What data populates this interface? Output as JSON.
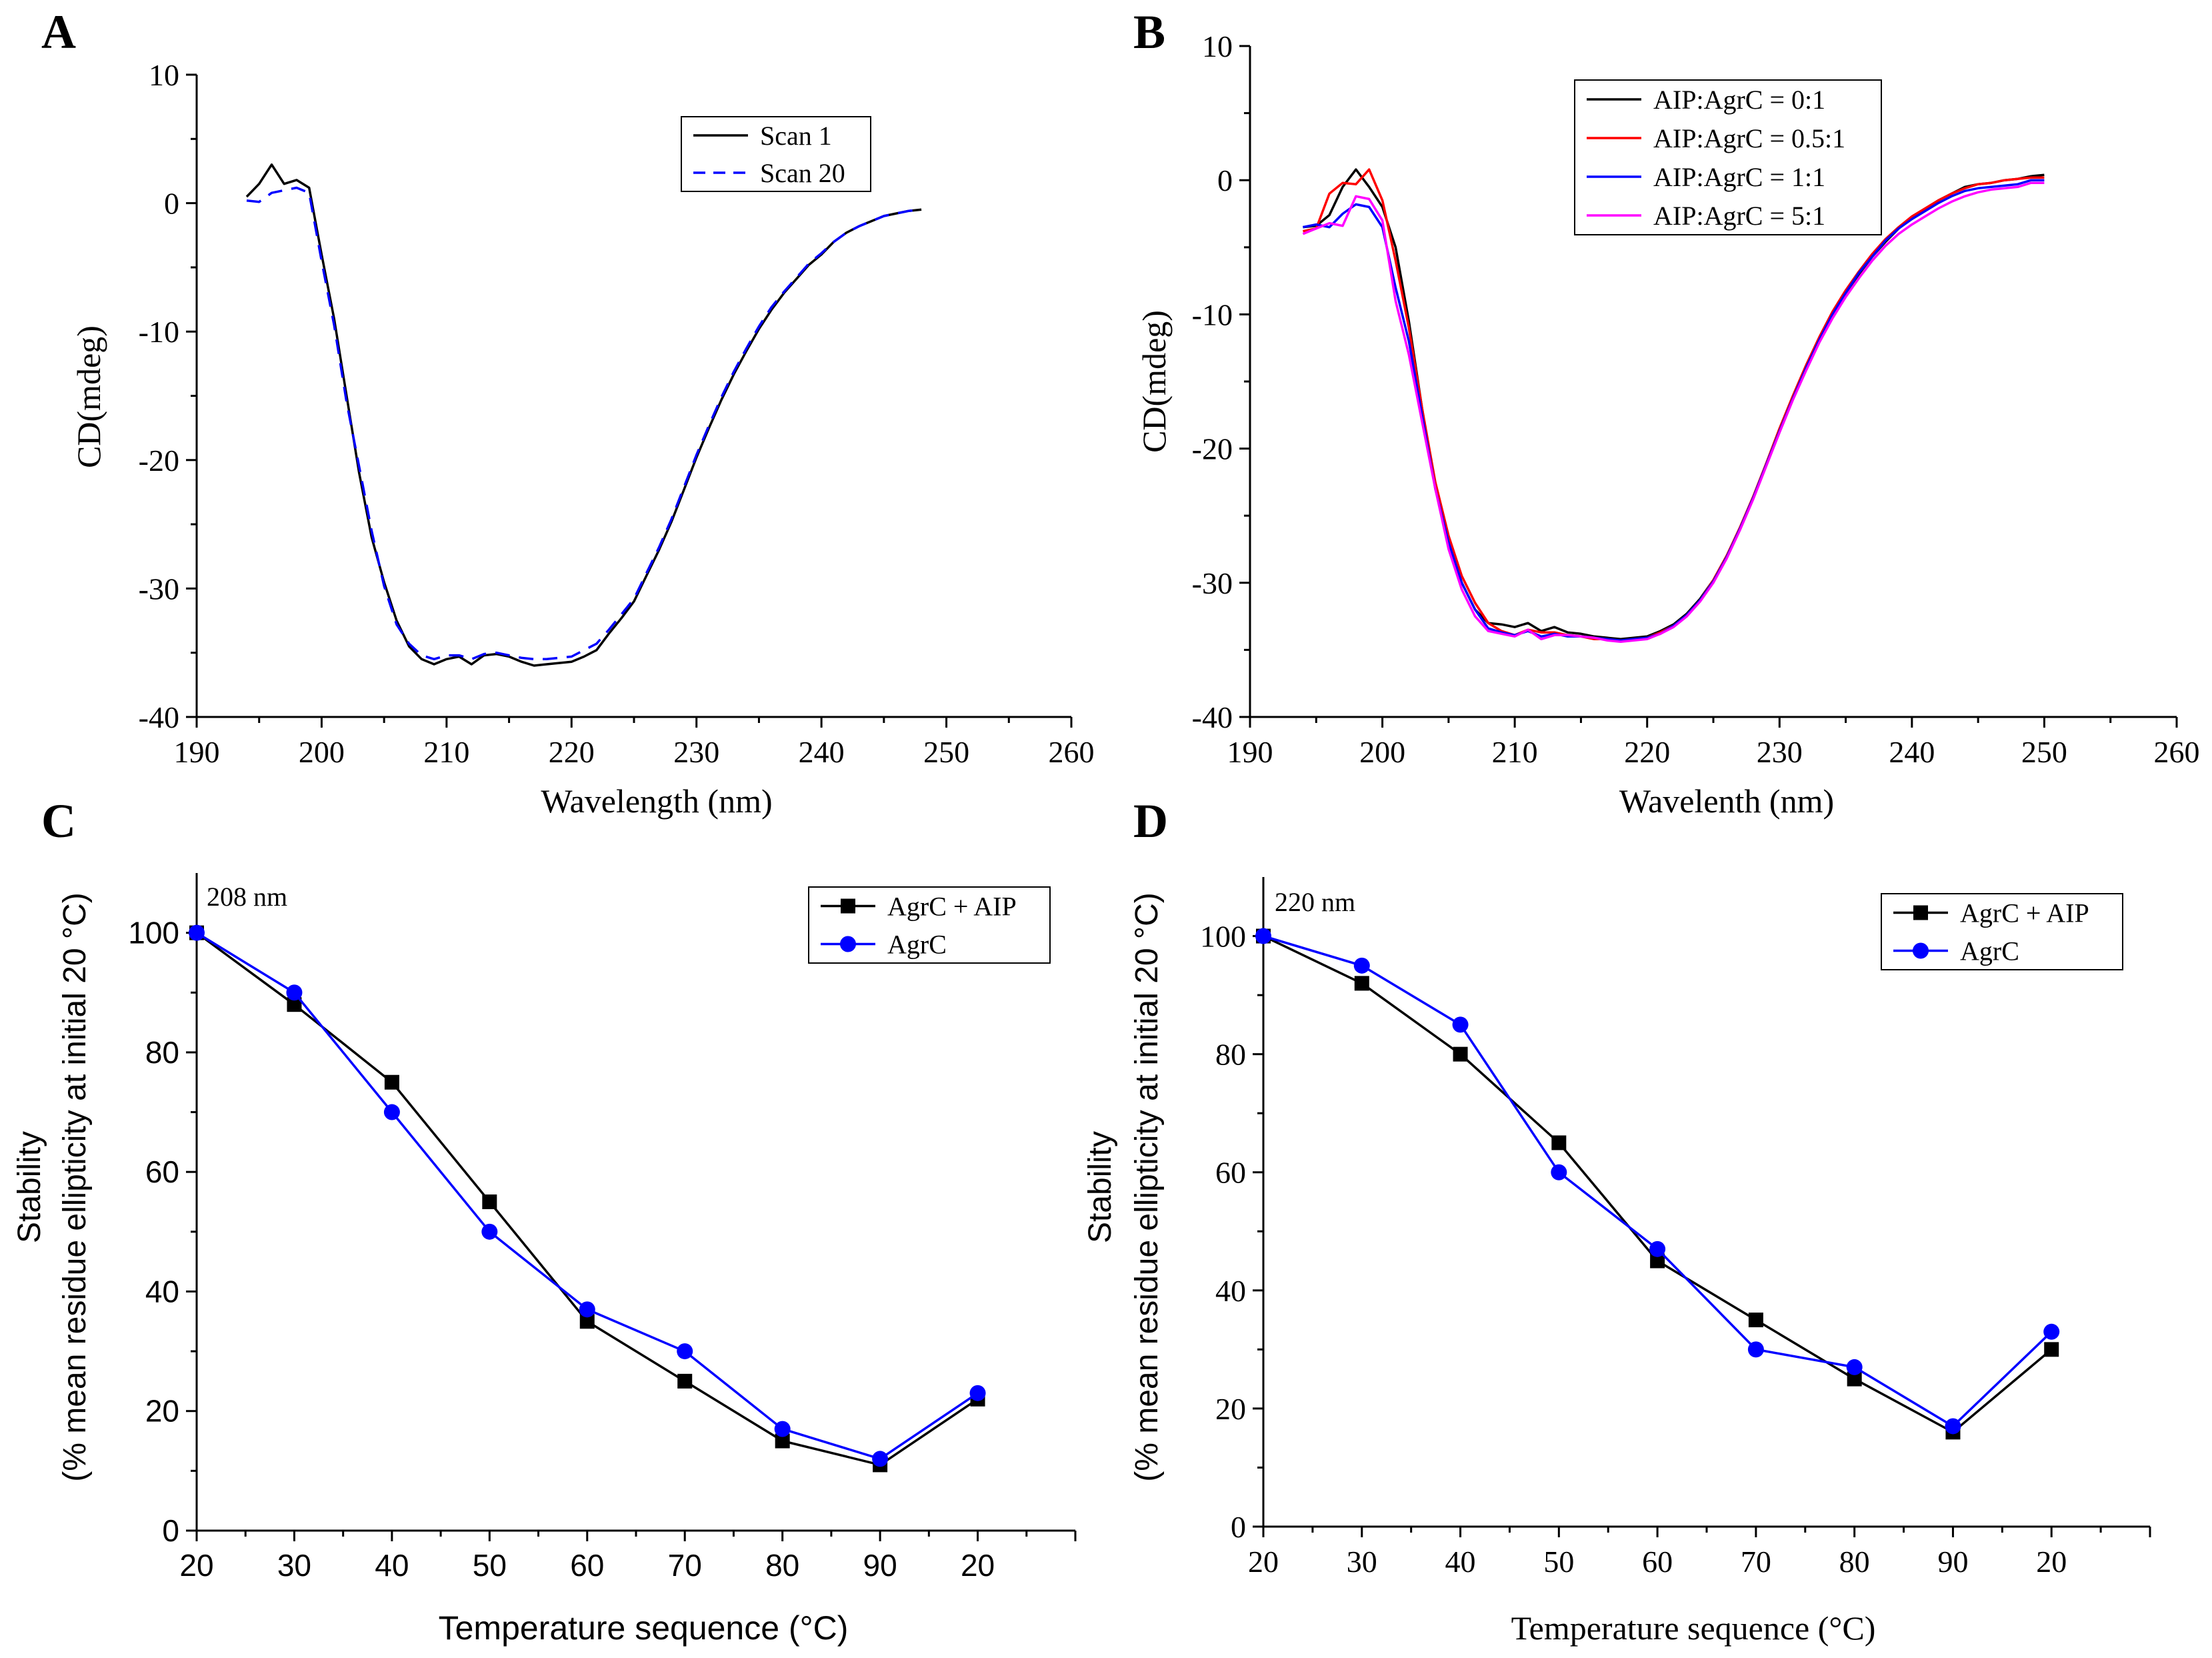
{
  "figure": {
    "panels": [
      {
        "letter": "A",
        "letter_font": "serif",
        "axis_font": "serif"
      },
      {
        "letter": "B",
        "letter_font": "serif",
        "axis_font": "serif"
      },
      {
        "letter": "C",
        "letter_font": "serif",
        "axis_font": "sans"
      },
      {
        "letter": "D",
        "letter_font": "serif",
        "axis_font": "serif"
      }
    ]
  },
  "chart_data": [
    {
      "panel": "A",
      "type": "line",
      "title": "",
      "xlabel": "Wavelength (nm)",
      "ylabel": "CD(mdeg)",
      "xlim": [
        190,
        260
      ],
      "ylim": [
        -40,
        10
      ],
      "xticks": [
        190,
        200,
        210,
        220,
        230,
        240,
        250,
        260
      ],
      "yticks": [
        -40,
        -30,
        -20,
        -10,
        0,
        10
      ],
      "legend_position": "top-right",
      "series": [
        {
          "name": "Scan 1",
          "color": "#000000",
          "dash": "solid",
          "x": [
            194,
            195,
            196,
            197,
            198,
            199,
            200,
            201,
            202,
            203,
            204,
            205,
            206,
            207,
            208,
            209,
            210,
            211,
            212,
            213,
            214,
            215,
            216,
            217,
            218,
            219,
            220,
            221,
            222,
            223,
            224,
            225,
            226,
            227,
            228,
            229,
            230,
            231,
            232,
            233,
            234,
            235,
            236,
            237,
            238,
            239,
            240,
            241,
            242,
            243,
            244,
            245,
            246,
            247,
            248
          ],
          "y": [
            0.5,
            1.5,
            3.0,
            1.5,
            1.8,
            1.2,
            -4.0,
            -9.0,
            -15.0,
            -21.0,
            -26.0,
            -29.5,
            -32.5,
            -34.5,
            -35.5,
            -35.9,
            -35.5,
            -35.3,
            -35.9,
            -35.2,
            -35.1,
            -35.3,
            -35.7,
            -36.0,
            -35.9,
            -35.8,
            -35.7,
            -35.3,
            -34.8,
            -33.5,
            -32.3,
            -31.0,
            -29.0,
            -27.0,
            -24.8,
            -22.3,
            -19.8,
            -17.5,
            -15.3,
            -13.3,
            -11.5,
            -9.8,
            -8.3,
            -7.0,
            -5.9,
            -4.8,
            -4.0,
            -3.0,
            -2.3,
            -1.8,
            -1.4,
            -1.0,
            -0.8,
            -0.6,
            -0.5
          ]
        },
        {
          "name": "Scan 20",
          "color": "#0000FF",
          "dash": "dashed",
          "x": [
            194,
            195,
            196,
            197,
            198,
            199,
            200,
            201,
            202,
            203,
            204,
            205,
            206,
            207,
            208,
            209,
            210,
            211,
            212,
            213,
            214,
            215,
            216,
            217,
            218,
            219,
            220,
            221,
            222,
            223,
            224,
            225,
            226,
            227,
            228,
            229,
            230,
            231,
            232,
            233,
            234,
            235,
            236,
            237,
            238,
            239,
            240,
            241,
            242,
            243,
            244,
            245,
            246,
            247,
            248
          ],
          "y": [
            0.2,
            0.1,
            0.8,
            1.0,
            1.2,
            0.8,
            -4.5,
            -9.5,
            -15.5,
            -20.5,
            -25.5,
            -29.8,
            -32.8,
            -34.3,
            -35.2,
            -35.5,
            -35.2,
            -35.2,
            -35.5,
            -35.1,
            -35.0,
            -35.2,
            -35.4,
            -35.5,
            -35.5,
            -35.4,
            -35.3,
            -34.8,
            -34.3,
            -33.2,
            -32.0,
            -30.8,
            -28.8,
            -26.8,
            -24.6,
            -22.1,
            -19.6,
            -17.3,
            -15.1,
            -13.1,
            -11.3,
            -9.6,
            -8.1,
            -6.9,
            -5.8,
            -4.7,
            -3.9,
            -3.0,
            -2.3,
            -1.8,
            -1.4,
            -1.0,
            -0.8,
            -0.6,
            -0.5
          ]
        }
      ]
    },
    {
      "panel": "B",
      "type": "line",
      "title": "",
      "xlabel": "Wavelenth (nm)",
      "ylabel": "CD(mdeg)",
      "xlim": [
        190,
        260
      ],
      "ylim": [
        -40,
        10
      ],
      "xticks": [
        190,
        200,
        210,
        220,
        230,
        240,
        250,
        260
      ],
      "yticks": [
        -40,
        -30,
        -20,
        -10,
        0,
        10
      ],
      "legend_position": "top-right",
      "series": [
        {
          "name": "AIP:AgrC = 0:1",
          "color": "#000000",
          "dash": "solid",
          "x": [
            194,
            195,
            196,
            197,
            198,
            199,
            200,
            201,
            202,
            203,
            204,
            205,
            206,
            207,
            208,
            209,
            210,
            211,
            212,
            213,
            214,
            215,
            216,
            217,
            218,
            219,
            220,
            221,
            222,
            223,
            224,
            225,
            226,
            227,
            228,
            229,
            230,
            231,
            232,
            233,
            234,
            235,
            236,
            237,
            238,
            239,
            240,
            241,
            242,
            243,
            244,
            245,
            246,
            247,
            248,
            249,
            250
          ],
          "y": [
            -3.5,
            -3.4,
            -2.6,
            -0.5,
            0.8,
            -0.5,
            -2.0,
            -5.0,
            -10.5,
            -17.0,
            -23.0,
            -27.0,
            -30.0,
            -32.0,
            -33.0,
            -33.1,
            -33.3,
            -33.0,
            -33.6,
            -33.3,
            -33.7,
            -33.8,
            -34.0,
            -34.1,
            -34.2,
            -34.1,
            -34.0,
            -33.6,
            -33.1,
            -32.3,
            -31.2,
            -29.8,
            -28.0,
            -26.0,
            -23.7,
            -21.2,
            -18.7,
            -16.3,
            -14.0,
            -11.9,
            -10.0,
            -8.4,
            -7.0,
            -5.7,
            -4.6,
            -3.6,
            -2.8,
            -2.2,
            -1.5,
            -1.0,
            -0.5,
            -0.3,
            -0.2,
            0.0,
            0.1,
            0.3,
            0.4
          ]
        },
        {
          "name": "AIP:AgrC = 0.5:1",
          "color": "#FF0000",
          "dash": "solid",
          "x": [
            194,
            195,
            196,
            197,
            198,
            199,
            200,
            201,
            202,
            203,
            204,
            205,
            206,
            207,
            208,
            209,
            210,
            211,
            212,
            213,
            214,
            215,
            216,
            217,
            218,
            219,
            220,
            221,
            222,
            223,
            224,
            225,
            226,
            227,
            228,
            229,
            230,
            231,
            232,
            233,
            234,
            235,
            236,
            237,
            238,
            239,
            240,
            241,
            242,
            243,
            244,
            245,
            246,
            247,
            248,
            249,
            250
          ],
          "y": [
            -3.8,
            -3.6,
            -1.0,
            -0.2,
            -0.3,
            0.8,
            -1.5,
            -6.0,
            -11.0,
            -17.0,
            -22.5,
            -26.5,
            -29.5,
            -31.5,
            -33.0,
            -33.6,
            -33.9,
            -33.5,
            -33.7,
            -33.7,
            -33.9,
            -34.0,
            -34.2,
            -34.2,
            -34.3,
            -34.2,
            -34.1,
            -33.7,
            -33.2,
            -32.4,
            -31.3,
            -29.8,
            -28.0,
            -25.9,
            -23.6,
            -21.1,
            -18.5,
            -16.1,
            -13.8,
            -11.7,
            -9.8,
            -8.2,
            -6.8,
            -5.5,
            -4.4,
            -3.5,
            -2.7,
            -2.1,
            -1.5,
            -1.0,
            -0.6,
            -0.3,
            -0.2,
            0.0,
            0.1,
            0.2,
            0.2
          ]
        },
        {
          "name": "AIP:AgrC = 1:1",
          "color": "#0000FF",
          "dash": "solid",
          "x": [
            194,
            195,
            196,
            197,
            198,
            199,
            200,
            201,
            202,
            203,
            204,
            205,
            206,
            207,
            208,
            209,
            210,
            211,
            212,
            213,
            214,
            215,
            216,
            217,
            218,
            219,
            220,
            221,
            222,
            223,
            224,
            225,
            226,
            227,
            228,
            229,
            230,
            231,
            232,
            233,
            234,
            235,
            236,
            237,
            238,
            239,
            240,
            241,
            242,
            243,
            244,
            245,
            246,
            247,
            248,
            249,
            250
          ],
          "y": [
            -3.5,
            -3.3,
            -3.5,
            -2.5,
            -1.8,
            -2.0,
            -3.5,
            -8.0,
            -12.0,
            -17.5,
            -23.0,
            -27.0,
            -30.0,
            -32.0,
            -33.4,
            -33.7,
            -33.9,
            -33.6,
            -34.0,
            -33.8,
            -34.0,
            -34.0,
            -34.1,
            -34.2,
            -34.3,
            -34.2,
            -34.1,
            -33.8,
            -33.2,
            -32.4,
            -31.3,
            -29.9,
            -28.1,
            -26.0,
            -23.7,
            -21.2,
            -18.7,
            -16.3,
            -14.0,
            -11.9,
            -10.0,
            -8.4,
            -6.9,
            -5.7,
            -4.5,
            -3.6,
            -2.9,
            -2.3,
            -1.7,
            -1.2,
            -0.8,
            -0.6,
            -0.5,
            -0.4,
            -0.3,
            0.0,
            0.0
          ]
        },
        {
          "name": "AIP:AgrC = 5:1",
          "color": "#FF00FF",
          "dash": "solid",
          "x": [
            194,
            195,
            196,
            197,
            198,
            199,
            200,
            201,
            202,
            203,
            204,
            205,
            206,
            207,
            208,
            209,
            210,
            211,
            212,
            213,
            214,
            215,
            216,
            217,
            218,
            219,
            220,
            221,
            222,
            223,
            224,
            225,
            226,
            227,
            228,
            229,
            230,
            231,
            232,
            233,
            234,
            235,
            236,
            237,
            238,
            239,
            240,
            241,
            242,
            243,
            244,
            245,
            246,
            247,
            248,
            249,
            250
          ],
          "y": [
            -4.0,
            -3.6,
            -3.2,
            -3.4,
            -1.2,
            -1.4,
            -3.0,
            -9.0,
            -13.0,
            -18.0,
            -23.0,
            -27.5,
            -30.5,
            -32.5,
            -33.6,
            -33.8,
            -34.0,
            -33.5,
            -34.2,
            -33.9,
            -33.9,
            -34.0,
            -34.1,
            -34.3,
            -34.4,
            -34.3,
            -34.2,
            -33.8,
            -33.3,
            -32.5,
            -31.4,
            -30.0,
            -28.2,
            -26.1,
            -23.8,
            -21.3,
            -18.8,
            -16.4,
            -14.2,
            -12.1,
            -10.3,
            -8.7,
            -7.3,
            -6.0,
            -4.9,
            -4.0,
            -3.3,
            -2.7,
            -2.1,
            -1.6,
            -1.2,
            -0.9,
            -0.7,
            -0.6,
            -0.5,
            -0.2,
            -0.2
          ]
        }
      ]
    },
    {
      "panel": "C",
      "type": "line",
      "title": "",
      "annotation": "208 nm",
      "xlabel": "Temperature sequence (°C)",
      "ylabel": [
        "Stability",
        "(% mean residue ellipticity at initial 20 °C)"
      ],
      "xlim": [
        0,
        9
      ],
      "ylim": [
        0,
        110
      ],
      "categories": [
        "20",
        "30",
        "40",
        "50",
        "60",
        "70",
        "80",
        "90",
        "20"
      ],
      "yticks": [
        0,
        20,
        40,
        60,
        80,
        100
      ],
      "legend_position": "top-right",
      "series": [
        {
          "name": "AgrC + AIP",
          "color": "#000000",
          "marker": "square",
          "values": [
            100,
            88,
            75,
            55,
            35,
            25,
            15,
            11,
            22
          ]
        },
        {
          "name": "AgrC",
          "color": "#0000FF",
          "marker": "circle",
          "values": [
            100,
            90,
            70,
            50,
            37,
            30,
            17,
            12,
            23
          ]
        }
      ]
    },
    {
      "panel": "D",
      "type": "line",
      "title": "",
      "annotation": "220 nm",
      "xlabel": "Temperature sequence (°C)",
      "ylabel": [
        "Stability",
        "(% mean residue ellipticity at initial 20 °C)"
      ],
      "xlim": [
        0,
        9
      ],
      "ylim": [
        0,
        110
      ],
      "categories": [
        "20",
        "30",
        "40",
        "50",
        "60",
        "70",
        "80",
        "90",
        "20"
      ],
      "yticks": [
        0,
        20,
        40,
        60,
        80,
        100
      ],
      "legend_position": "top-right",
      "series": [
        {
          "name": "AgrC + AIP",
          "color": "#000000",
          "marker": "square",
          "values": [
            100,
            92,
            80,
            65,
            45,
            35,
            25,
            16,
            30
          ]
        },
        {
          "name": "AgrC",
          "color": "#0000FF",
          "marker": "circle",
          "values": [
            100,
            95,
            85,
            60,
            47,
            30,
            27,
            17,
            33
          ]
        }
      ]
    }
  ]
}
